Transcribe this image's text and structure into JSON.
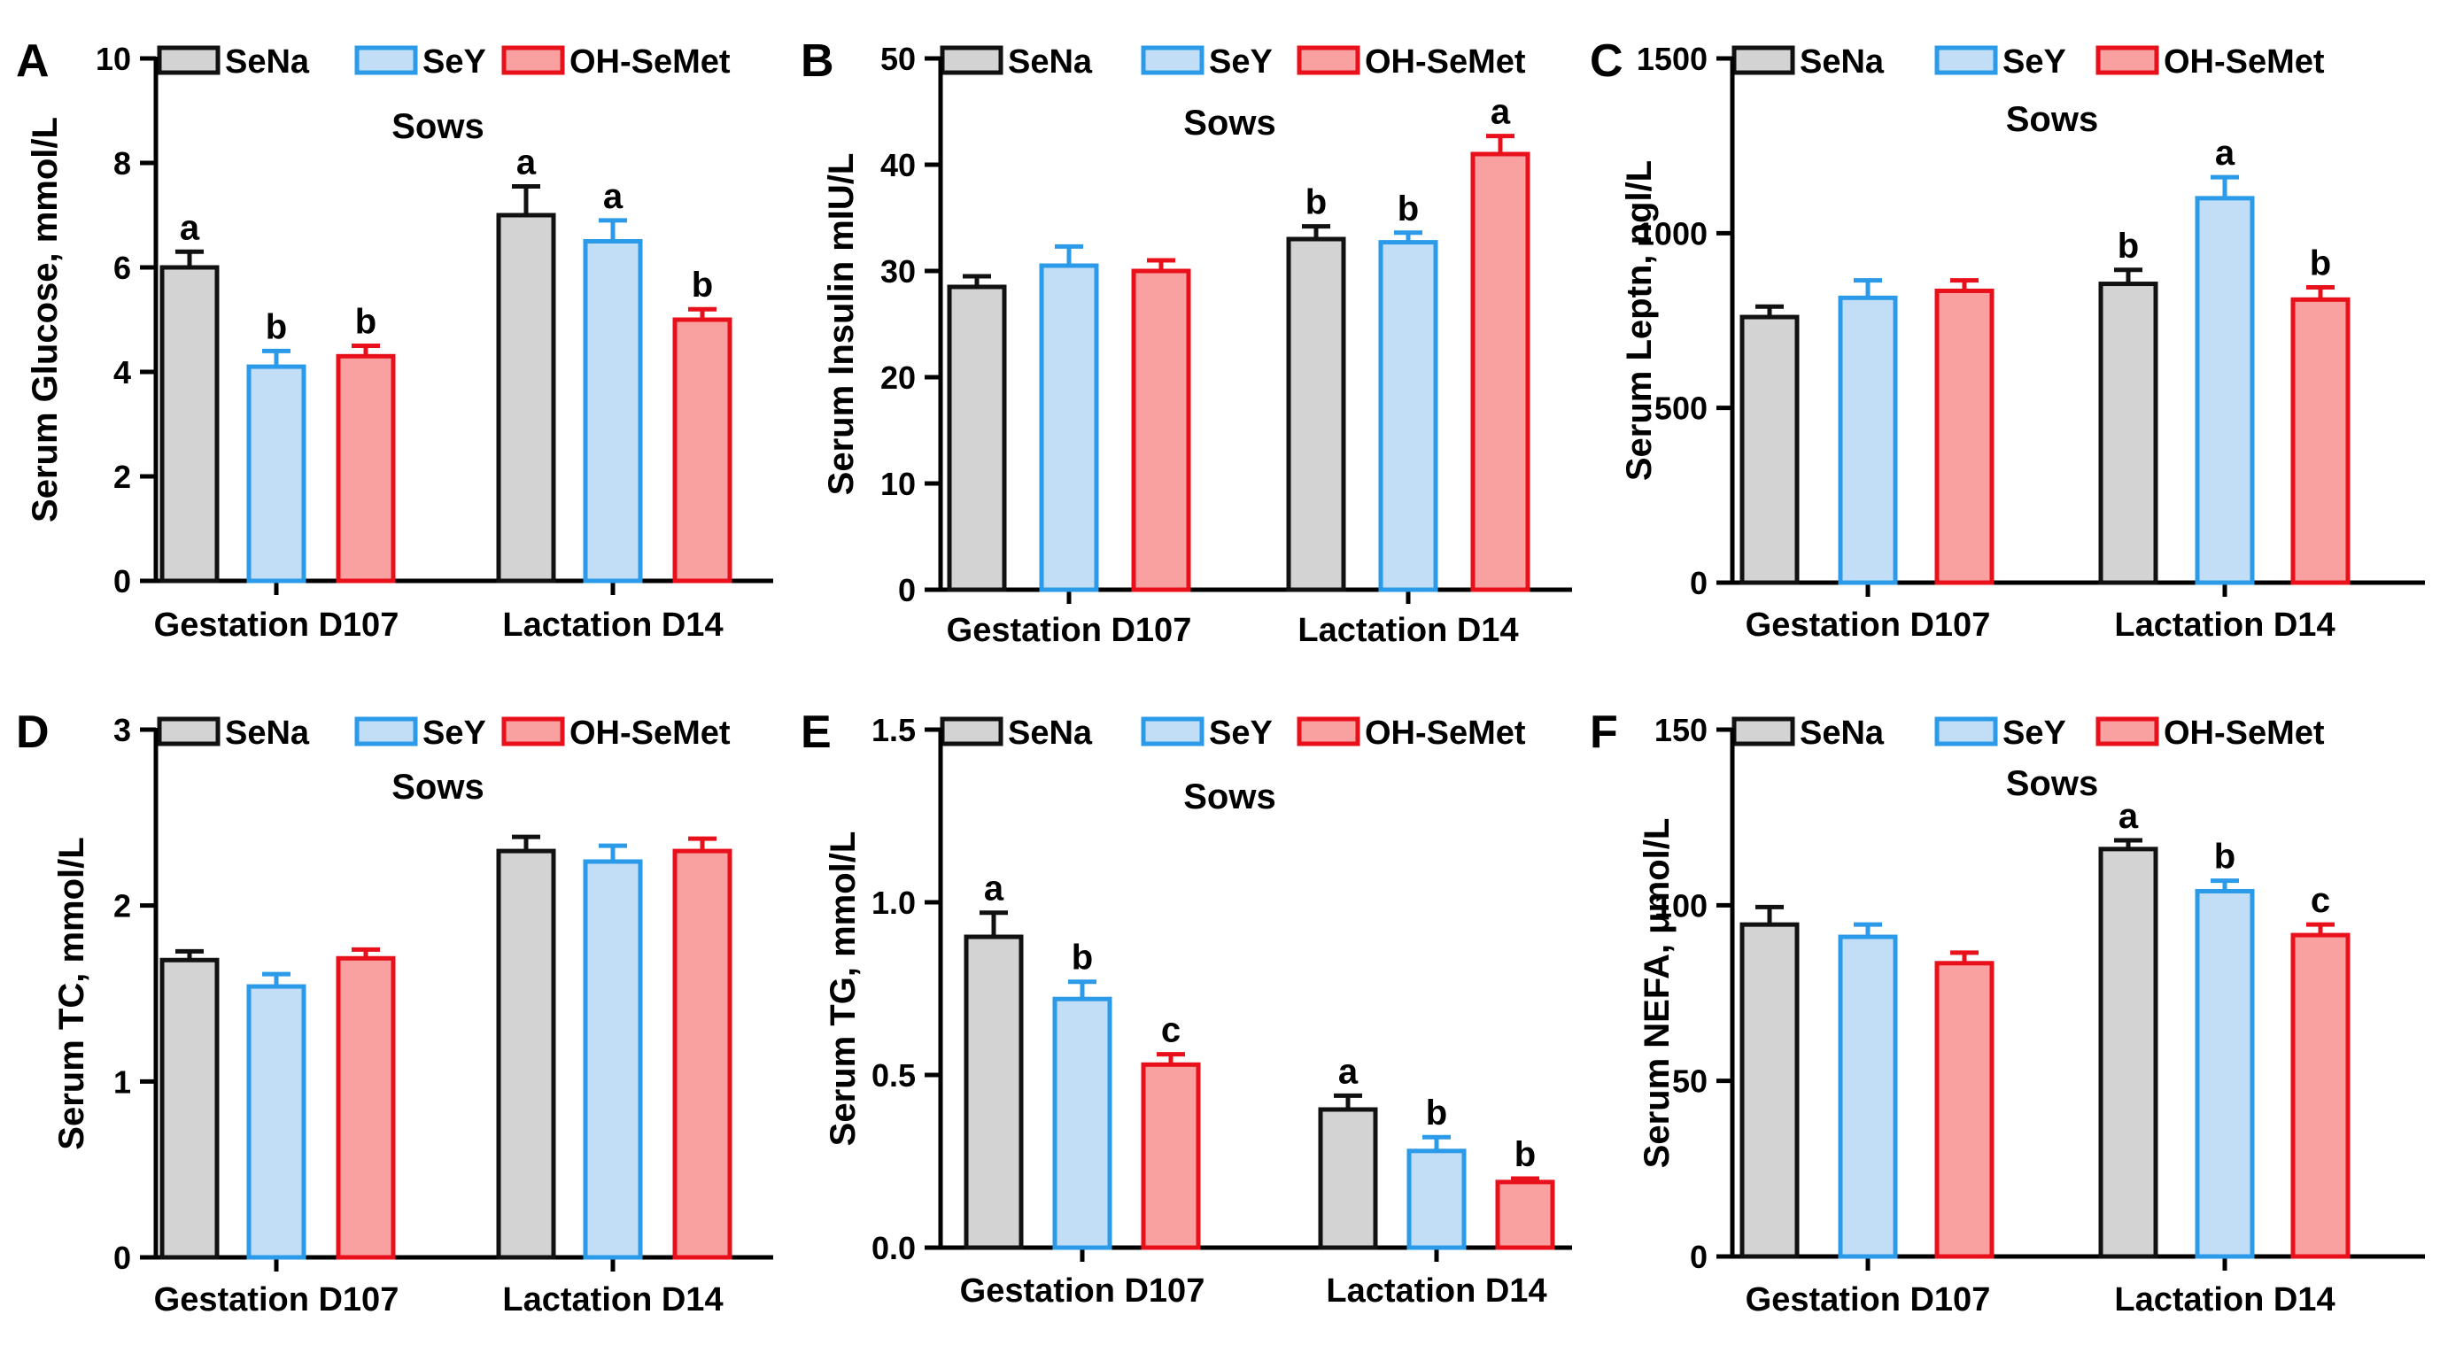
{
  "figure": {
    "legend_labels": [
      "SeNa",
      "SeY",
      "OH-SeMet"
    ],
    "group_labels": [
      "Gestation D107",
      "Lactation D14"
    ],
    "series_colors": [
      {
        "fill": "#d3d3d3",
        "stroke": "#111111"
      },
      {
        "fill": "#c2def7",
        "stroke": "#2b9ae8"
      },
      {
        "fill": "#f9a0a0",
        "stroke": "#e8101a"
      }
    ]
  },
  "chart_data": [
    {
      "type": "bar",
      "panel_letter": "A",
      "title": "Sows",
      "ylabel": "Serum Glucose, mmol/L",
      "xlabel": "",
      "ylim": [
        0,
        10
      ],
      "yticks": [
        "0",
        "2",
        "4",
        "6",
        "8",
        "10"
      ],
      "categories": [
        "Gestation D107",
        "Lactation D14"
      ],
      "series": [
        {
          "name": "SeNa",
          "values": [
            6.0,
            7.0
          ],
          "errors": [
            0.3,
            0.55
          ],
          "letters": [
            "a",
            "a"
          ]
        },
        {
          "name": "SeY",
          "values": [
            4.1,
            6.5
          ],
          "errors": [
            0.3,
            0.4
          ],
          "letters": [
            "b",
            "a"
          ]
        },
        {
          "name": "OH-SeMet",
          "values": [
            4.3,
            5.0
          ],
          "errors": [
            0.2,
            0.2
          ],
          "letters": [
            "b",
            "b"
          ]
        }
      ]
    },
    {
      "type": "bar",
      "panel_letter": "B",
      "title": "Sows",
      "ylabel": "Serum Insulin mIU/L",
      "xlabel": "",
      "ylim": [
        0,
        50
      ],
      "yticks": [
        "0",
        "10",
        "20",
        "30",
        "40",
        "50"
      ],
      "categories": [
        "Gestation D107",
        "Lactation D14"
      ],
      "series": [
        {
          "name": "SeNa",
          "values": [
            28.5,
            33.0
          ],
          "errors": [
            1.0,
            1.2
          ],
          "letters": [
            "",
            "b"
          ]
        },
        {
          "name": "SeY",
          "values": [
            30.5,
            32.7
          ],
          "errors": [
            1.8,
            0.9
          ],
          "letters": [
            "",
            "b"
          ]
        },
        {
          "name": "OH-SeMet",
          "values": [
            30.0,
            41.0
          ],
          "errors": [
            1.0,
            1.7
          ],
          "letters": [
            "",
            "a"
          ]
        }
      ]
    },
    {
      "type": "bar",
      "panel_letter": "C",
      "title": "Sows",
      "ylabel": "Serum Leptn, ngl/L",
      "xlabel": "",
      "ylim": [
        0,
        1500
      ],
      "yticks": [
        "0",
        "500",
        "1000",
        "1500"
      ],
      "categories": [
        "Gestation D107",
        "Lactation D14"
      ],
      "series": [
        {
          "name": "SeNa",
          "values": [
            760,
            855
          ],
          "errors": [
            30,
            40
          ],
          "letters": [
            "",
            "b"
          ]
        },
        {
          "name": "SeY",
          "values": [
            815,
            1100
          ],
          "errors": [
            50,
            60
          ],
          "letters": [
            "",
            "a"
          ]
        },
        {
          "name": "OH-SeMet",
          "values": [
            835,
            810
          ],
          "errors": [
            30,
            35
          ],
          "letters": [
            "",
            "b"
          ]
        }
      ]
    },
    {
      "type": "bar",
      "panel_letter": "D",
      "title": "Sows",
      "ylabel": "Serum TC, mmol/L",
      "xlabel": "",
      "ylim": [
        0,
        3
      ],
      "yticks": [
        "0",
        "1",
        "2",
        "3"
      ],
      "categories": [
        "Gestation D107",
        "Lactation D14"
      ],
      "series": [
        {
          "name": "SeNa",
          "values": [
            1.69,
            2.31
          ],
          "errors": [
            0.05,
            0.08
          ],
          "letters": [
            "",
            ""
          ]
        },
        {
          "name": "SeY",
          "values": [
            1.54,
            2.25
          ],
          "errors": [
            0.07,
            0.09
          ],
          "letters": [
            "",
            ""
          ]
        },
        {
          "name": "OH-SeMet",
          "values": [
            1.7,
            2.31
          ],
          "errors": [
            0.05,
            0.07
          ],
          "letters": [
            "",
            ""
          ]
        }
      ]
    },
    {
      "type": "bar",
      "panel_letter": "E",
      "title": "Sows",
      "ylabel": "Serum TG, mmol/L",
      "xlabel": "",
      "ylim": [
        0,
        1.5
      ],
      "yticks": [
        "0.0",
        "0.5",
        "1.0",
        "1.5"
      ],
      "categories": [
        "Gestation D107",
        "Lactation D14"
      ],
      "series": [
        {
          "name": "SeNa",
          "values": [
            0.9,
            0.4
          ],
          "errors": [
            0.07,
            0.04
          ],
          "letters": [
            "a",
            "a"
          ]
        },
        {
          "name": "SeY",
          "values": [
            0.72,
            0.28
          ],
          "errors": [
            0.05,
            0.04
          ],
          "letters": [
            "b",
            "b"
          ]
        },
        {
          "name": "OH-SeMet",
          "values": [
            0.53,
            0.19
          ],
          "errors": [
            0.03,
            0.01
          ],
          "letters": [
            "c",
            "b"
          ]
        }
      ]
    },
    {
      "type": "bar",
      "panel_letter": "F",
      "title": "Sows",
      "ylabel": "Serum NEFA, μmol/L",
      "xlabel": "",
      "ylim": [
        0,
        150
      ],
      "yticks": [
        "0",
        "50",
        "100",
        "150"
      ],
      "categories": [
        "Gestation D107",
        "Lactation D14"
      ],
      "series": [
        {
          "name": "SeNa",
          "values": [
            94.5,
            116.0
          ],
          "errors": [
            5.0,
            2.5
          ],
          "letters": [
            "",
            "a"
          ]
        },
        {
          "name": "SeY",
          "values": [
            91.0,
            104.0
          ],
          "errors": [
            3.5,
            3.0
          ],
          "letters": [
            "",
            "b"
          ]
        },
        {
          "name": "OH-SeMet",
          "values": [
            83.5,
            91.5
          ],
          "errors": [
            3.0,
            3.0
          ],
          "letters": [
            "",
            "c"
          ]
        }
      ]
    }
  ]
}
